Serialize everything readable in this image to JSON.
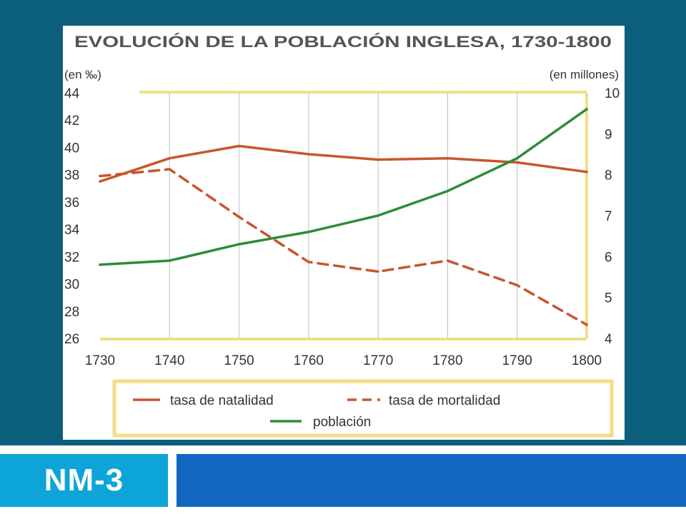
{
  "slide": {
    "label": "NM-3",
    "colors": {
      "background": "#0c5f7c",
      "label_box": "#0da5d8",
      "bar": "#1366c0"
    }
  },
  "chart_data": {
    "type": "line",
    "title": "EVOLUCIÓN DE LA POBLACIÓN INGLESA, 1730-1800",
    "y_left_unit": "(en ‰)",
    "y_right_unit": "(en millones)",
    "x": [
      1730,
      1740,
      1750,
      1760,
      1770,
      1780,
      1790,
      1800
    ],
    "x_ticks": [
      "1730",
      "1740",
      "1750",
      "1760",
      "1770",
      "1780",
      "1790",
      "1800"
    ],
    "y_left_ticks": [
      "44",
      "42",
      "40",
      "38",
      "36",
      "34",
      "32",
      "30",
      "28",
      "26"
    ],
    "y_right_ticks": [
      "10",
      "9",
      "8",
      "7",
      "6",
      "5",
      "4"
    ],
    "ylim_left": [
      26,
      44
    ],
    "ylim_right": [
      4,
      10
    ],
    "grid": "vertical",
    "legend_position": "bottom",
    "series": [
      {
        "name": "tasa de natalidad",
        "axis": "left",
        "style": "solid",
        "color": "#c8552e",
        "values": [
          37.5,
          39.2,
          40.1,
          39.5,
          39.1,
          39.2,
          38.9,
          38.2
        ]
      },
      {
        "name": "tasa de mortalidad",
        "axis": "left",
        "style": "dashed",
        "color": "#c8552e",
        "values": [
          37.9,
          38.4,
          34.9,
          31.6,
          30.9,
          31.7,
          29.9,
          27.0
        ]
      },
      {
        "name": "población",
        "axis": "right",
        "style": "solid",
        "color": "#2e8b3a",
        "values": [
          5.8,
          5.9,
          6.3,
          6.6,
          7.0,
          7.6,
          8.4,
          9.6
        ]
      }
    ]
  }
}
